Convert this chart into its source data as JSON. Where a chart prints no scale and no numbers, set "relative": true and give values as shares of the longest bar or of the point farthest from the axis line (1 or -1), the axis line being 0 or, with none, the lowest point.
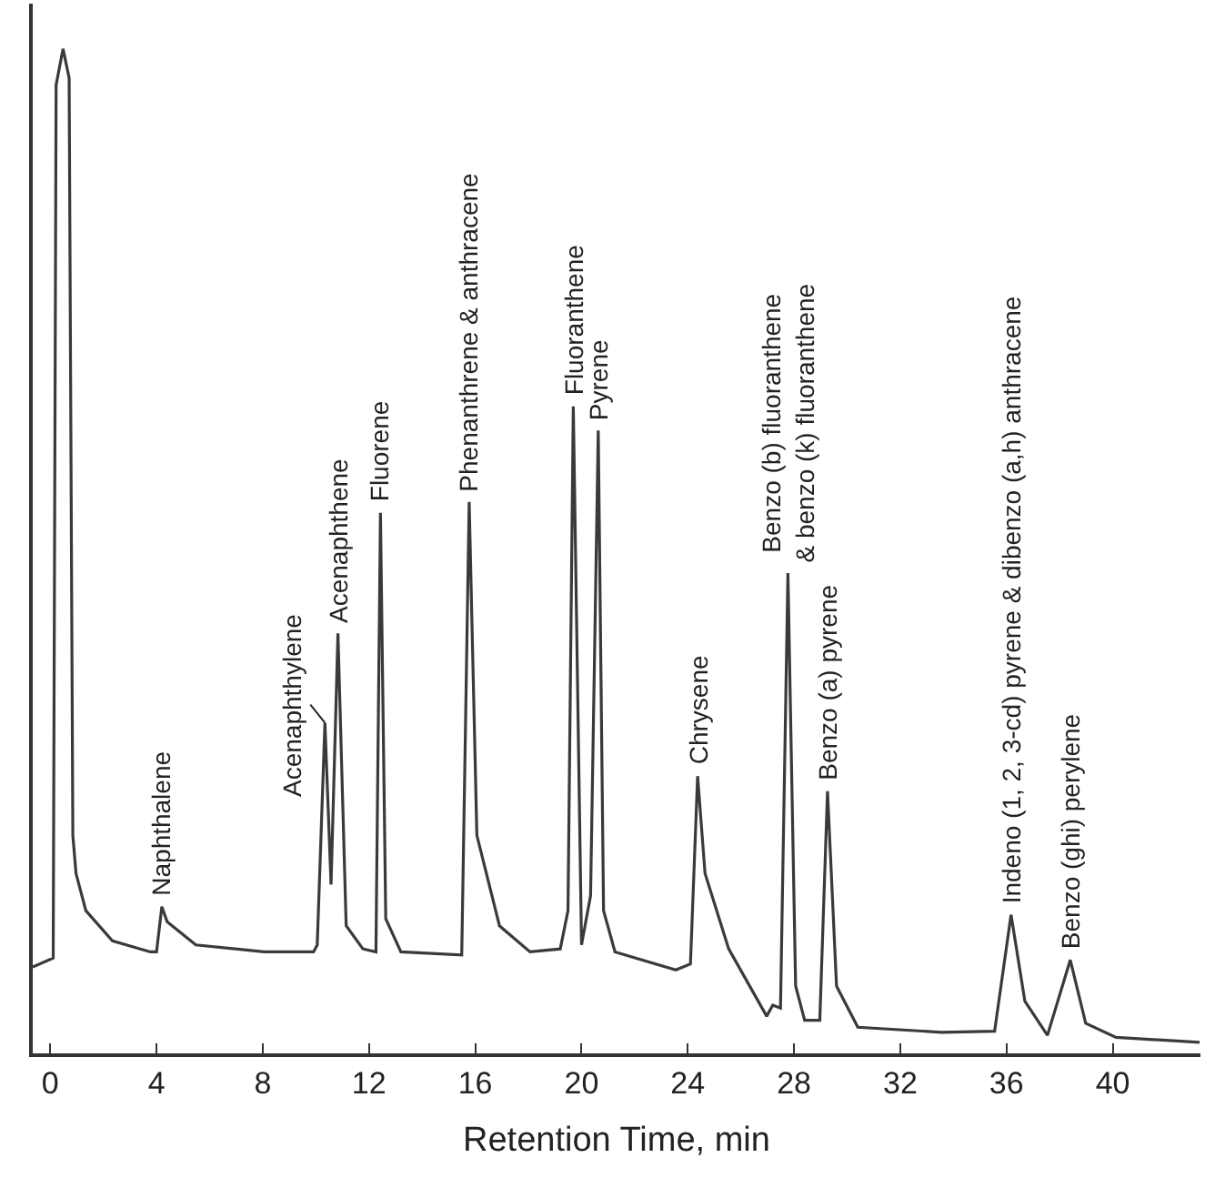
{
  "chart_data": {
    "type": "line",
    "relative": true,
    "xlabel": "Retention Time, min",
    "xlim": [
      -0.66,
      43.3
    ],
    "xticks": [
      0,
      4,
      8,
      12,
      16,
      20,
      24,
      28,
      32,
      36,
      40
    ],
    "legend": false,
    "marker": "none",
    "line_style": "solid",
    "x": [
      -0.66,
      0.11,
      0.22,
      0.48,
      0.71,
      0.85,
      0.97,
      1.34,
      2.34,
      3.77,
      4.0,
      4.2,
      4.4,
      5.48,
      8.05,
      9.91,
      10.05,
      10.34,
      10.57,
      10.83,
      11.14,
      11.77,
      12.26,
      12.43,
      12.63,
      13.2,
      15.49,
      15.77,
      16.06,
      16.91,
      18.06,
      19.2,
      19.49,
      19.69,
      20.0,
      20.34,
      20.63,
      20.83,
      21.26,
      23.55,
      24.1,
      24.37,
      24.65,
      25.54,
      26.97,
      27.2,
      27.49,
      27.77,
      28.06,
      28.4,
      28.97,
      29.26,
      29.6,
      30.4,
      33.55,
      35.55,
      36.17,
      36.69,
      37.54,
      38.4,
      38.98,
      40.12,
      43.27
    ],
    "series": [
      {
        "color": "#3a3a3a",
        "values": [
          0.086,
          0.095,
          0.964,
          1.0,
          0.971,
          0.217,
          0.179,
          0.142,
          0.112,
          0.101,
          0.101,
          0.146,
          0.131,
          0.108,
          0.101,
          0.101,
          0.108,
          0.329,
          0.168,
          0.418,
          0.127,
          0.104,
          0.101,
          0.538,
          0.134,
          0.101,
          0.098,
          0.549,
          0.217,
          0.127,
          0.101,
          0.104,
          0.142,
          0.644,
          0.108,
          0.157,
          0.62,
          0.142,
          0.101,
          0.083,
          0.089,
          0.276,
          0.179,
          0.104,
          0.037,
          0.048,
          0.045,
          0.478,
          0.067,
          0.033,
          0.033,
          0.261,
          0.067,
          0.026,
          0.021,
          0.022,
          0.138,
          0.052,
          0.018,
          0.093,
          0.03,
          0.016,
          0.011
        ]
      }
    ],
    "annotations": [
      {
        "text": "Naphthalene",
        "x": 4.2,
        "y": 0.146
      },
      {
        "text": "Acenaphthylene",
        "x": 10.34,
        "y": 0.329
      },
      {
        "text": "Acenaphthene",
        "x": 10.83,
        "y": 0.418
      },
      {
        "text": "Fluorene",
        "x": 12.43,
        "y": 0.538
      },
      {
        "text": "Phenanthrene & anthracene",
        "x": 15.77,
        "y": 0.549
      },
      {
        "text": "Fluoranthene",
        "x": 19.69,
        "y": 0.644
      },
      {
        "text": "Pyrene",
        "x": 20.63,
        "y": 0.62
      },
      {
        "text": "Chrysene",
        "x": 24.37,
        "y": 0.276
      },
      {
        "text": "Benzo (b) fluoranthene\n& benzo (k) fluoranthene",
        "x": 27.77,
        "y": 0.478
      },
      {
        "text": "Benzo (a) pyrene",
        "x": 29.26,
        "y": 0.261
      },
      {
        "text": "Indeno (1, 2, 3-cd) pyrene & dibenzo (a,h) anthracene",
        "x": 36.17,
        "y": 0.138
      },
      {
        "text": "Benzo (ghi) perylene",
        "x": 38.4,
        "y": 0.093
      }
    ]
  }
}
